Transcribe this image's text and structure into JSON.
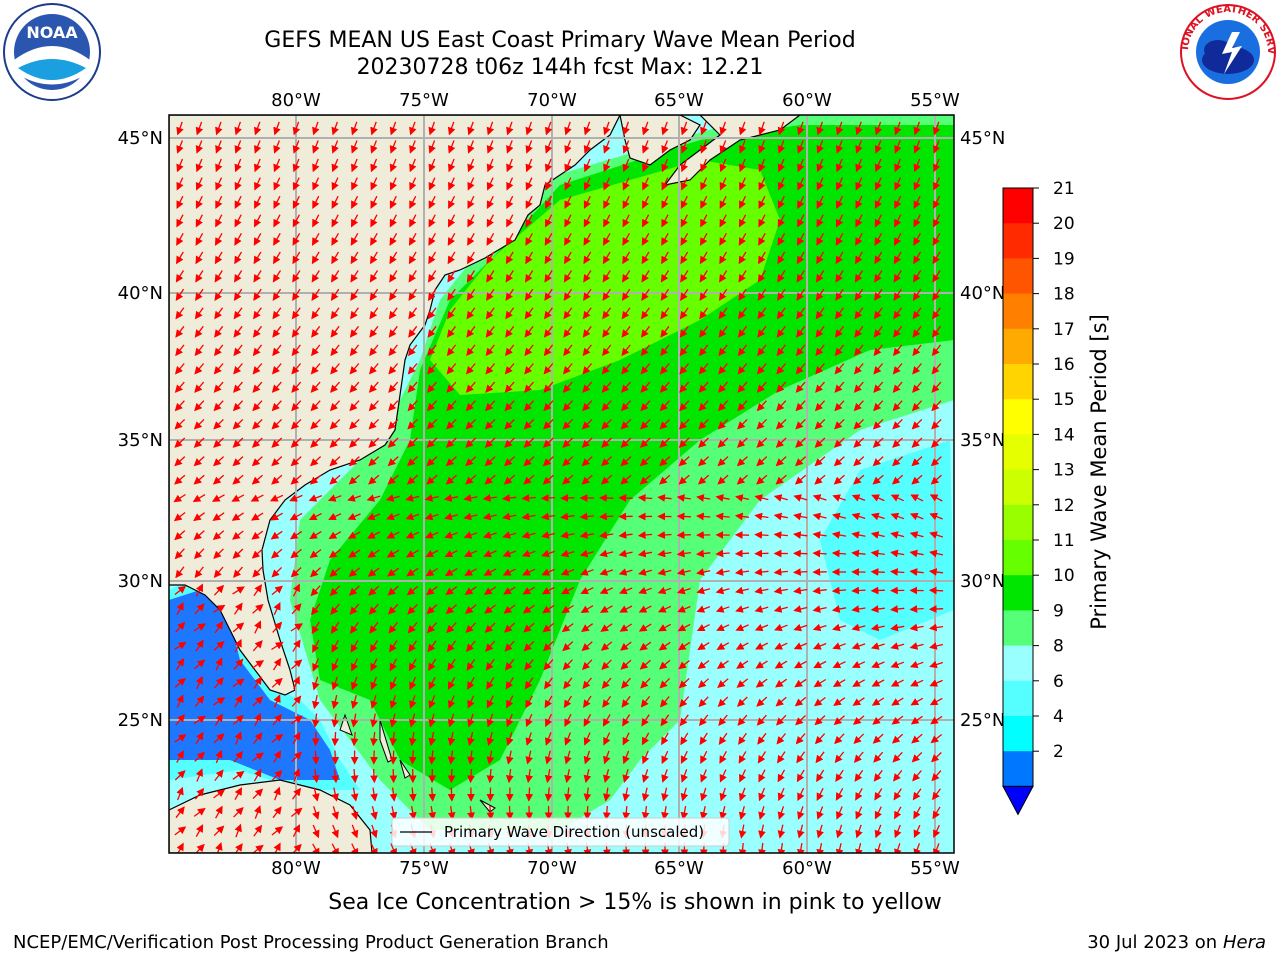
{
  "title_line1": "GEFS MEAN US East Coast Primary Wave Mean Period",
  "title_line2": "20230728 t06z 144h fcst   Max: 12.21",
  "map": {
    "lon_labels": [
      "80°W",
      "75°W",
      "70°W",
      "65°W",
      "60°W",
      "55°W"
    ],
    "lat_labels": [
      "45°N",
      "40°N",
      "35°N",
      "30°N",
      "25°N"
    ],
    "legend_label": "Primary Wave Direction (unscaled)"
  },
  "colorbar": {
    "label": "Primary Wave Mean Period [s]",
    "ticks": [
      "21",
      "20",
      "19",
      "18",
      "17",
      "16",
      "15",
      "14",
      "13",
      "12",
      "11",
      "10",
      "9",
      "8",
      "6",
      "4",
      "2"
    ],
    "colors": [
      "#ff0000",
      "#ff2a00",
      "#ff5500",
      "#ff8000",
      "#ffaa00",
      "#ffd400",
      "#ffff00",
      "#e6ff00",
      "#ccff00",
      "#99ff00",
      "#66ff00",
      "#00e600",
      "#55ff77",
      "#99ffff",
      "#55ffff",
      "#00ffff",
      "#0077ff"
    ],
    "under_color": "#0000ff"
  },
  "colors": {
    "land": "#efecda",
    "arrows": "#ff0000",
    "grid": "#b0b0b0",
    "green_dark": "#00e600",
    "green_light": "#55ff77",
    "lime": "#66ff00",
    "cyan_light": "#99ffff",
    "cyan": "#55ffff",
    "blue": "#1e78ff"
  },
  "footer_note": "Sea Ice Concentration > 15% is shown in pink to yellow",
  "credit_left": "NCEP/EMC/Verification Post Processing Product Generation Branch",
  "credit_right_date": "30 Jul 2023 on ",
  "credit_right_machine": "Hera",
  "logos": {
    "noaa_text": "NOAA",
    "nws_text": "NATIONAL WEATHER SERVICE"
  }
}
